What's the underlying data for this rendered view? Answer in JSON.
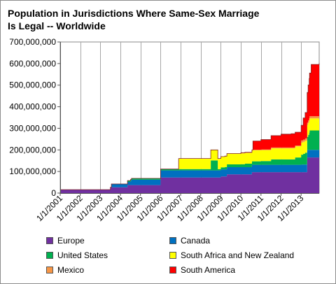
{
  "title_lines": [
    "Population in Jurisdictions Where Same-Sex Marriage",
    "Is Legal -- Worldwide"
  ],
  "chart_data": {
    "type": "area",
    "stacked": true,
    "step": true,
    "title": "Population in Jurisdictions Where Same-Sex Marriage Is Legal -- Worldwide",
    "xlabel": "",
    "ylabel": "",
    "xlim": [
      2001.0,
      2013.9
    ],
    "ylim": [
      0,
      700000000
    ],
    "grid": "vertical",
    "legend_position": "bottom",
    "y_tick_labels": [
      "0",
      "100,000,000",
      "200,000,000",
      "300,000,000",
      "400,000,000",
      "500,000,000",
      "600,000,000",
      "700,000,000"
    ],
    "y_ticks": [
      0,
      100000000,
      200000000,
      300000000,
      400000000,
      500000000,
      600000000,
      700000000
    ],
    "x_tick_labels": [
      "1/1/2001",
      "1/1/2002",
      "1/1/2003",
      "1/1/2004",
      "1/1/2005",
      "1/1/2006",
      "1/1/2007",
      "1/1/2008",
      "1/1/2009",
      "1/1/2010",
      "1/1/2011",
      "1/1/2012",
      "1/1/2013"
    ],
    "x_ticks": [
      2001,
      2002,
      2003,
      2004,
      2005,
      2006,
      2007,
      2008,
      2009,
      2010,
      2011,
      2012,
      2013
    ],
    "x": [
      2001.0,
      2003.0,
      2003.5,
      2003.55,
      2004.35,
      2004.5,
      2004.55,
      2005.0,
      2005.5,
      2006.0,
      2006.9,
      2008.0,
      2008.5,
      2008.85,
      2009.0,
      2009.2,
      2009.3,
      2010.0,
      2010.2,
      2010.5,
      2010.55,
      2010.6,
      2011.0,
      2011.5,
      2012.0,
      2012.5,
      2012.7,
      2013.0,
      2013.1,
      2013.2,
      2013.3,
      2013.35,
      2013.4,
      2013.42,
      2013.5,
      2013.9
    ],
    "series": [
      {
        "name": "Europe",
        "color": "#7030a0",
        "values": [
          16000000,
          16000000,
          27000000,
          27000000,
          37000000,
          37000000,
          37000000,
          37000000,
          37000000,
          72000000,
          72000000,
          72000000,
          72000000,
          72000000,
          77000000,
          77000000,
          87000000,
          87000000,
          87000000,
          87000000,
          97000000,
          97000000,
          97000000,
          97000000,
          97000000,
          97000000,
          97000000,
          97000000,
          97000000,
          97000000,
          165000000,
          165000000,
          165000000,
          165000000,
          165000000,
          165000000
        ]
      },
      {
        "name": "Canada",
        "color": "#0070c0",
        "values": [
          0,
          0,
          0,
          15000000,
          15000000,
          20000000,
          25000000,
          25000000,
          25000000,
          33000000,
          33000000,
          33000000,
          33000000,
          33000000,
          33000000,
          33000000,
          33000000,
          33000000,
          33000000,
          33000000,
          34000000,
          34000000,
          34000000,
          34000000,
          34000000,
          34000000,
          34000000,
          35000000,
          35000000,
          35000000,
          35000000,
          35000000,
          35000000,
          35000000,
          35000000,
          35000000
        ]
      },
      {
        "name": "United States",
        "color": "#00b050",
        "values": [
          0,
          0,
          0,
          0,
          6000000,
          6000000,
          6000000,
          6000000,
          6000000,
          6000000,
          6000000,
          6000000,
          46000000,
          6000000,
          9000000,
          11000000,
          13000000,
          14000000,
          16000000,
          16000000,
          16000000,
          16000000,
          17000000,
          25000000,
          25000000,
          25000000,
          34000000,
          46000000,
          50000000,
          55000000,
          60000000,
          70000000,
          80000000,
          90000000,
          90000000,
          95000000
        ]
      },
      {
        "name": "South Africa and New Zealand",
        "color": "#ffff00",
        "values": [
          0,
          0,
          0,
          0,
          0,
          0,
          0,
          0,
          0,
          0,
          49000000,
          49000000,
          49000000,
          49000000,
          50000000,
          50000000,
          50000000,
          50000000,
          50000000,
          50000000,
          50000000,
          51000000,
          51000000,
          51000000,
          51000000,
          51000000,
          51000000,
          56000000,
          56000000,
          56000000,
          56000000,
          56000000,
          56000000,
          56000000,
          56000000,
          56000000
        ]
      },
      {
        "name": "Mexico",
        "color": "#f79646",
        "values": [
          0,
          0,
          0,
          0,
          0,
          0,
          0,
          0,
          0,
          0,
          0,
          0,
          0,
          0,
          0,
          0,
          0,
          3000000,
          3000000,
          3000000,
          3000000,
          3000000,
          3000000,
          4000000,
          4000000,
          4000000,
          4000000,
          10000000,
          10000000,
          10000000,
          10000000,
          10000000,
          10000000,
          10000000,
          10000000,
          10000000
        ]
      },
      {
        "name": "South America",
        "color": "#ff0000",
        "values": [
          0,
          0,
          0,
          0,
          0,
          0,
          0,
          0,
          0,
          0,
          0,
          0,
          0,
          0,
          0,
          0,
          0,
          0,
          0,
          0,
          0,
          40000000,
          46000000,
          55000000,
          62000000,
          64000000,
          62000000,
          70000000,
          100000000,
          120000000,
          140000000,
          165000000,
          185000000,
          200000000,
          240000000,
          240000000
        ]
      }
    ]
  },
  "legend": [
    {
      "label": "Europe",
      "color": "#7030a0",
      "col": 0,
      "row": 0
    },
    {
      "label": "Canada",
      "color": "#0070c0",
      "col": 1,
      "row": 0
    },
    {
      "label": "United States",
      "color": "#00b050",
      "col": 0,
      "row": 1
    },
    {
      "label": "South Africa and New Zealand",
      "color": "#ffff00",
      "col": 1,
      "row": 1
    },
    {
      "label": "Mexico",
      "color": "#f79646",
      "col": 0,
      "row": 2
    },
    {
      "label": "South America",
      "color": "#ff0000",
      "col": 1,
      "row": 2
    }
  ]
}
